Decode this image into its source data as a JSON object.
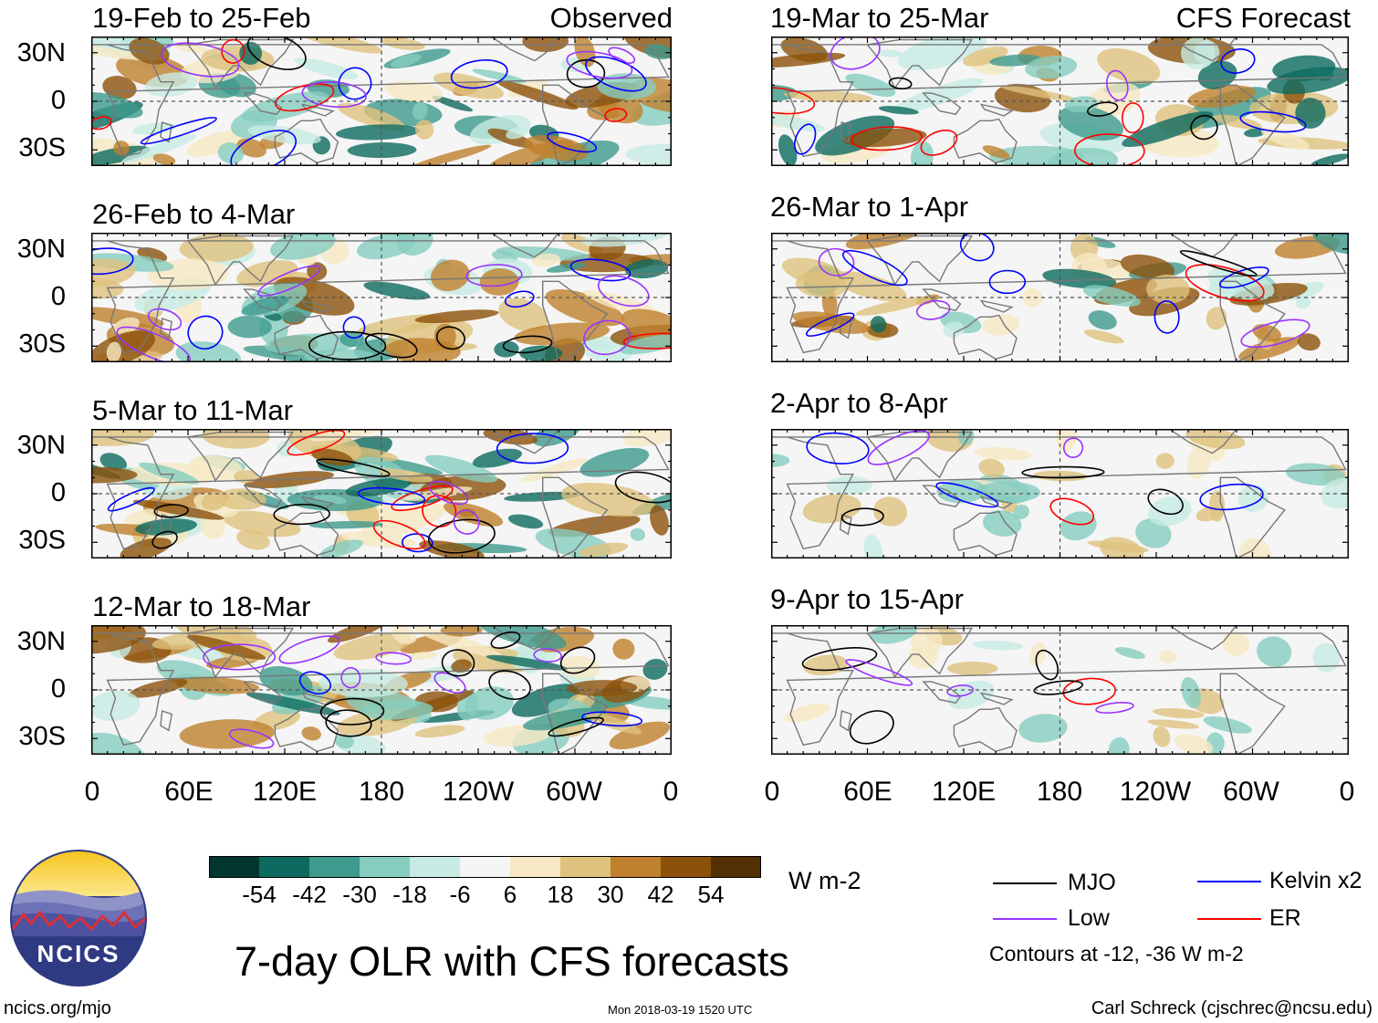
{
  "chart_data": {
    "type": "heatmap",
    "title": "7-day OLR with CFS forecasts",
    "units": "W m-2",
    "colorbar": {
      "ticks": [
        "-54",
        "-42",
        "-30",
        "-18",
        "-6",
        "6",
        "18",
        "30",
        "42",
        "54"
      ],
      "colors": [
        "#01362e",
        "#0d6a5f",
        "#3d9a8d",
        "#86cdbf",
        "#c7ebe3",
        "#f5f5f5",
        "#f6e8c3",
        "#dfc27d",
        "#bf812d",
        "#8c510a",
        "#543005"
      ]
    },
    "x_ticks": [
      "0",
      "60E",
      "120E",
      "180",
      "120W",
      "60W",
      "0"
    ],
    "y_ticks": [
      "30N",
      "0",
      "30S"
    ],
    "panels": [
      {
        "column": "observed",
        "title": "19-Feb to 25-Feb",
        "label": "Observed"
      },
      {
        "column": "observed",
        "title": "26-Feb to 4-Mar"
      },
      {
        "column": "observed",
        "title": "5-Mar to 11-Mar"
      },
      {
        "column": "observed",
        "title": "12-Mar to 18-Mar"
      },
      {
        "column": "forecast",
        "title": "19-Mar to 25-Mar",
        "label": "CFS Forecast"
      },
      {
        "column": "forecast",
        "title": "26-Mar to 1-Apr"
      },
      {
        "column": "forecast",
        "title": "2-Apr to 8-Apr"
      },
      {
        "column": "forecast",
        "title": "9-Apr to 15-Apr"
      }
    ],
    "legend": [
      {
        "name": "MJO",
        "color": "#000000"
      },
      {
        "name": "Kelvin x2",
        "color": "#0000ff"
      },
      {
        "name": "Low",
        "color": "#9933ff"
      },
      {
        "name": "ER",
        "color": "#ff0000"
      }
    ],
    "contour_note": "Contours at -12, -36 W m-2"
  },
  "footer": {
    "logo_text": "NCICS",
    "url": "ncics.org/mjo",
    "timestamp": "Mon 2018-03-19 1520 UTC",
    "credit": "Carl Schreck (cjschrec@ncsu.edu)"
  }
}
